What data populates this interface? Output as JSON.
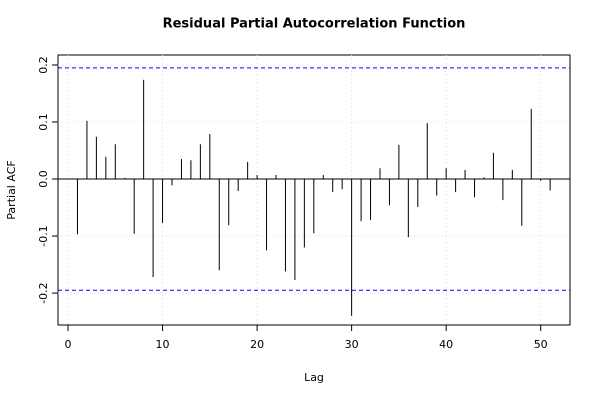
{
  "chart_data": {
    "type": "pacf",
    "title": "Residual Partial Autocorrelation Function",
    "x_label": "Lag",
    "y_label": "Partial ACF",
    "x": [
      1,
      2,
      3,
      4,
      5,
      6,
      7,
      8,
      9,
      10,
      11,
      12,
      13,
      14,
      15,
      16,
      17,
      18,
      19,
      20,
      21,
      22,
      23,
      24,
      25,
      26,
      27,
      28,
      29,
      30,
      31,
      32,
      33,
      34,
      35,
      36,
      37,
      38,
      39,
      40,
      41,
      42,
      43,
      44,
      45,
      46,
      47,
      48,
      49,
      50,
      51
    ],
    "values": [
      -0.097,
      0.102,
      0.074,
      0.039,
      0.061,
      0.002,
      -0.096,
      0.174,
      -0.172,
      -0.077,
      -0.011,
      0.035,
      0.033,
      0.061,
      0.079,
      -0.16,
      -0.081,
      -0.021,
      0.03,
      0.007,
      -0.125,
      0.007,
      -0.162,
      -0.177,
      -0.12,
      -0.095,
      0.007,
      -0.023,
      -0.018,
      -0.24,
      -0.074,
      -0.072,
      0.019,
      -0.046,
      0.06,
      -0.102,
      -0.049,
      0.098,
      -0.029,
      0.019,
      -0.023,
      0.016,
      -0.032,
      0.003,
      0.046,
      -0.037,
      0.016,
      -0.082,
      0.123,
      -0.003,
      -0.02
    ],
    "color": "#000000",
    "conf_limits": [
      0.195,
      -0.195
    ],
    "conf_color": "#0000ff",
    "xlim": [
      -1.06,
      53.1
    ],
    "ylim": [
      -0.256,
      0.2175
    ],
    "xticks": [
      0,
      10,
      20,
      30,
      40,
      50
    ],
    "yticks": [
      -0.2,
      -0.1,
      {
        "value": 0,
        "label": "0.0"
      },
      0.1,
      0.2
    ],
    "grid": true
  }
}
